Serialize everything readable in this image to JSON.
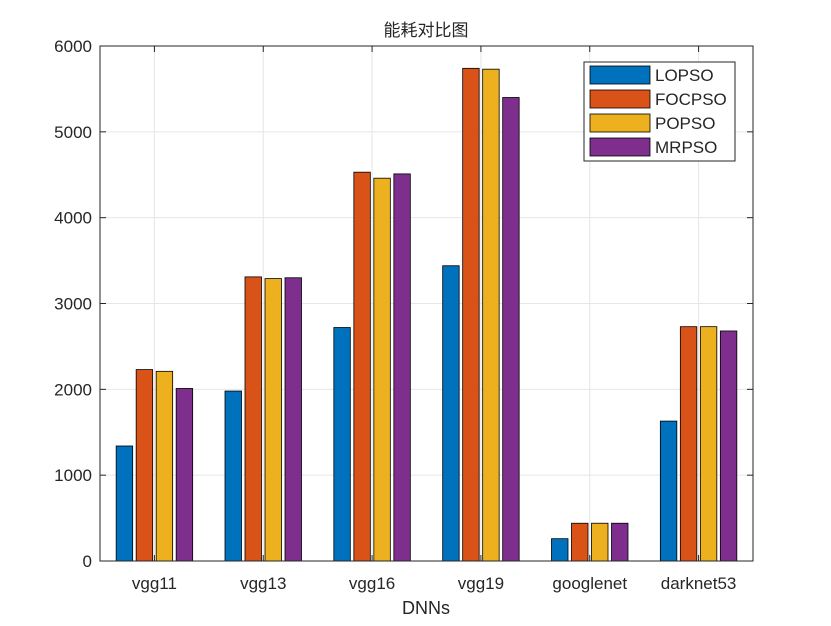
{
  "chart_data": {
    "type": "bar",
    "title": "能耗对比图",
    "xlabel": "DNNs",
    "ylabel": "",
    "ylim": [
      0,
      6000
    ],
    "yticks": [
      0,
      1000,
      2000,
      3000,
      4000,
      5000,
      6000
    ],
    "grid": true,
    "legend_position": "top-right",
    "categories": [
      "vgg11",
      "vgg13",
      "vgg16",
      "vgg19",
      "googlenet",
      "darknet53"
    ],
    "series": [
      {
        "name": "LOPSO",
        "color": "#0072BD",
        "values": [
          1340,
          1980,
          2720,
          3440,
          260,
          1630
        ]
      },
      {
        "name": "FOCPSO",
        "color": "#D95319",
        "values": [
          2230,
          3310,
          4530,
          5740,
          440,
          2730
        ]
      },
      {
        "name": "POPSO",
        "color": "#EDB120",
        "values": [
          2210,
          3290,
          4460,
          5730,
          440,
          2730
        ]
      },
      {
        "name": "MRPSO",
        "color": "#7E2F8E",
        "values": [
          2010,
          3300,
          4510,
          5400,
          440,
          2680
        ]
      }
    ]
  }
}
